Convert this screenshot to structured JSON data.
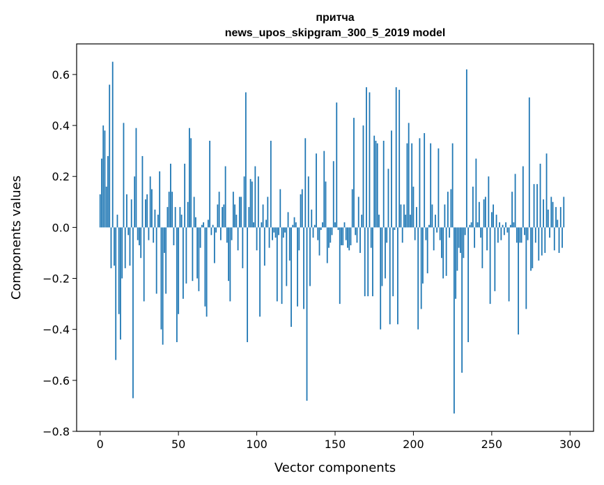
{
  "chart_data": {
    "type": "bar",
    "title": "притча",
    "subtitle": "news_upos_skipgram_300_5_2019 model",
    "xlabel": "Vector components",
    "ylabel": "Components values",
    "xlim": [
      -15,
      315
    ],
    "ylim": [
      -0.8,
      0.72
    ],
    "xticks": [
      0,
      50,
      100,
      150,
      200,
      250,
      300
    ],
    "xtick_labels": [
      "0",
      "50",
      "100",
      "150",
      "200",
      "250",
      "300"
    ],
    "yticks": [
      -0.8,
      -0.6,
      -0.4,
      -0.2,
      0.0,
      0.2,
      0.4,
      0.6
    ],
    "ytick_labels": [
      "−0.8",
      "−0.6",
      "−0.4",
      "−0.2",
      "0.0",
      "0.2",
      "0.4",
      "0.6"
    ],
    "grid": false,
    "bar_color": "#1f77b4",
    "x_start": 0,
    "values": [
      0.13,
      0.27,
      0.4,
      0.38,
      0.16,
      0.28,
      0.56,
      -0.16,
      0.65,
      -0.15,
      -0.52,
      0.05,
      -0.34,
      -0.44,
      -0.2,
      0.41,
      -0.16,
      0.13,
      -0.03,
      -0.15,
      0.11,
      -0.67,
      0.2,
      0.39,
      -0.05,
      -0.07,
      -0.12,
      0.28,
      -0.29,
      0.11,
      0.13,
      -0.05,
      0.2,
      0.15,
      -0.06,
      0.07,
      -0.26,
      0.05,
      0.22,
      -0.4,
      -0.46,
      -0.1,
      -0.26,
      0.08,
      0.14,
      0.25,
      0.14,
      -0.07,
      0.08,
      -0.45,
      -0.34,
      0.08,
      0.05,
      -0.28,
      0.25,
      -0.22,
      0.1,
      0.39,
      0.35,
      -0.21,
      0.12,
      0.04,
      -0.2,
      -0.25,
      -0.08,
      0.01,
      0.02,
      -0.31,
      -0.35,
      0.03,
      0.34,
      -0.03,
      0.01,
      -0.14,
      -0.02,
      0.09,
      0.14,
      -0.05,
      0.08,
      0.09,
      0.24,
      -0.06,
      -0.21,
      -0.29,
      -0.05,
      0.14,
      0.09,
      0.05,
      -0.09,
      0.12,
      0.12,
      -0.16,
      0.2,
      0.53,
      -0.45,
      0.08,
      0.19,
      0.18,
      0.02,
      0.24,
      -0.09,
      0.2,
      -0.35,
      0.02,
      0.09,
      -0.15,
      0.03,
      0.12,
      -0.08,
      0.34,
      -0.05,
      -0.02,
      -0.04,
      -0.29,
      -0.03,
      0.15,
      -0.3,
      -0.04,
      -0.02,
      -0.23,
      0.06,
      -0.13,
      -0.39,
      0.01,
      0.04,
      0.02,
      -0.31,
      -0.09,
      0.13,
      0.15,
      -0.32,
      0.35,
      -0.68,
      0.2,
      -0.23,
      0.07,
      -0.04,
      0.01,
      0.29,
      -0.05,
      -0.11,
      -0.01,
      0.02,
      0.3,
      0.18,
      -0.14,
      -0.08,
      -0.06,
      -0.03,
      0.26,
      0.02,
      0.49,
      -0.01,
      -0.3,
      -0.07,
      -0.07,
      0.02,
      -0.05,
      -0.08,
      -0.09,
      -0.07,
      0.15,
      0.43,
      -0.03,
      -0.06,
      0.12,
      -0.1,
      0.05,
      0.4,
      -0.27,
      0.55,
      -0.27,
      0.53,
      -0.08,
      -0.27,
      0.36,
      0.34,
      0.33,
      0.05,
      -0.4,
      -0.23,
      0.34,
      -0.2,
      -0.06,
      0.23,
      -0.38,
      0.38,
      -0.27,
      -0.01,
      0.55,
      -0.38,
      0.54,
      0.09,
      -0.06,
      0.09,
      0.05,
      0.33,
      0.41,
      0.05,
      0.33,
      0.16,
      -0.05,
      0.08,
      -0.4,
      0.35,
      -0.32,
      -0.22,
      0.37,
      -0.05,
      -0.18,
      0.01,
      0.33,
      0.09,
      -0.09,
      0.05,
      -0.02,
      0.31,
      -0.05,
      -0.12,
      -0.2,
      0.09,
      -0.19,
      0.14,
      -0.04,
      0.15,
      0.33,
      -0.73,
      -0.28,
      -0.17,
      -0.08,
      -0.1,
      -0.57,
      -0.12,
      -0.03,
      0.62,
      -0.45,
      0.01,
      0.02,
      0.16,
      -0.08,
      0.27,
      0.02,
      0.1,
      -0.04,
      -0.16,
      0.11,
      0.12,
      -0.09,
      0.2,
      -0.3,
      0.06,
      0.09,
      -0.25,
      0.05,
      -0.06,
      0.02,
      -0.05,
      0.01,
      -0.03,
      0.02,
      -0.02,
      -0.29,
      0.01,
      0.14,
      0.02,
      0.21,
      -0.06,
      -0.42,
      -0.06,
      -0.06,
      0.24,
      -0.03,
      -0.32,
      -0.05,
      0.51,
      -0.17,
      -0.16,
      0.17,
      -0.06,
      0.17,
      -0.13,
      0.25,
      -0.11,
      0.11,
      -0.1,
      0.29,
      0.07,
      -0.04,
      0.12,
      0.1,
      -0.09,
      0.08,
      0.03,
      -0.1,
      0.08,
      -0.08,
      0.12
    ]
  }
}
